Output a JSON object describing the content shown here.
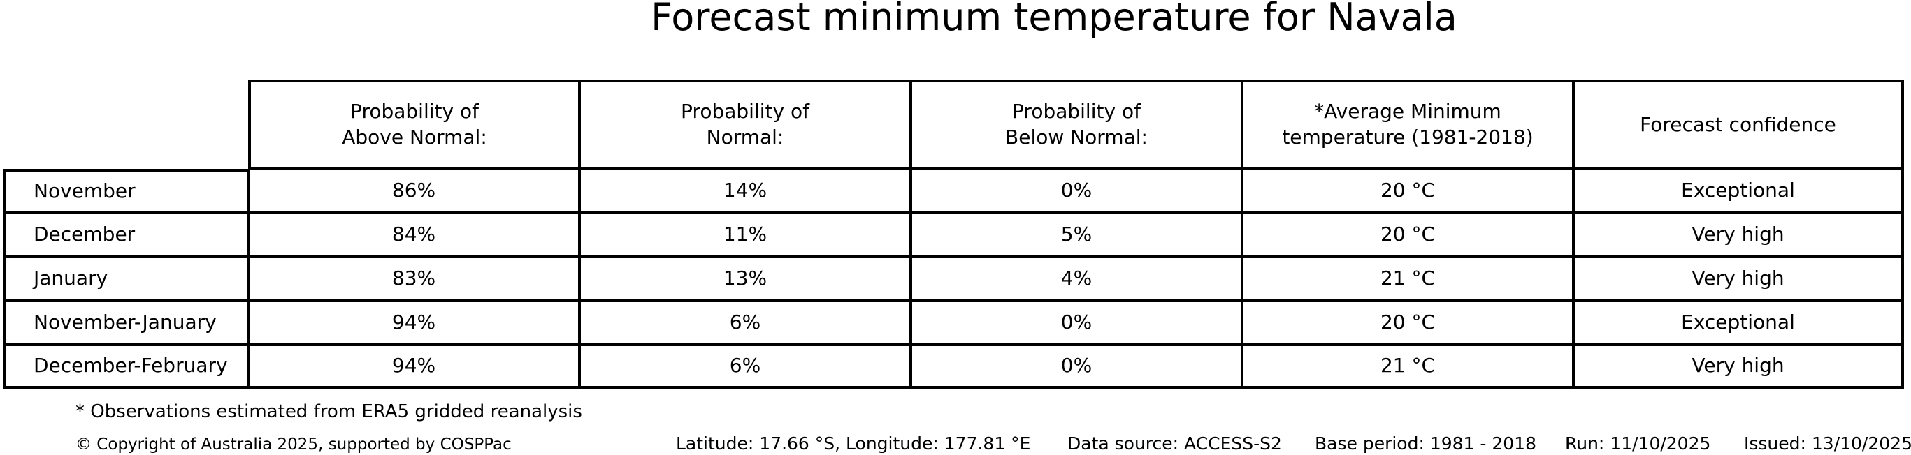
{
  "chart_data": {
    "type": "table",
    "title": "Forecast minimum temperature for Navala",
    "columns": [
      "",
      "Probability of\nAbove Normal:",
      "Probability of\nNormal:",
      "Probability of\nBelow Normal:",
      "*Average Minimum\ntemperature (1981-2018)",
      "Forecast confidence"
    ],
    "rows": [
      [
        "November",
        "86%",
        "14%",
        "0%",
        "20 °C",
        "Exceptional"
      ],
      [
        "December",
        "84%",
        "11%",
        "5%",
        "20 °C",
        "Very high"
      ],
      [
        "January",
        "83%",
        "13%",
        "4%",
        "21 °C",
        "Very high"
      ],
      [
        "November-January",
        "94%",
        "6%",
        "0%",
        "20 °C",
        "Exceptional"
      ],
      [
        "December-February",
        "94%",
        "6%",
        "0%",
        "21 °C",
        "Very high"
      ]
    ],
    "layout_hints": {
      "grid": "off",
      "header_row_separate_from_label_column": true
    }
  },
  "footnote": "* Observations estimated from ERA5 gridded reanalysis",
  "footer": {
    "copyright": "© Copyright of Australia 2025, supported by COSPPac",
    "location": "Latitude: 17.66 °S, Longitude: 177.81 °E",
    "data_source": "Data source: ACCESS-S2",
    "base_period": "Base period: 1981 - 2018",
    "run": "Run: 11/10/2025",
    "issued": "Issued: 13/10/2025"
  },
  "colors": {
    "text": "#000000",
    "background": "#ffffff",
    "border": "#000000"
  }
}
